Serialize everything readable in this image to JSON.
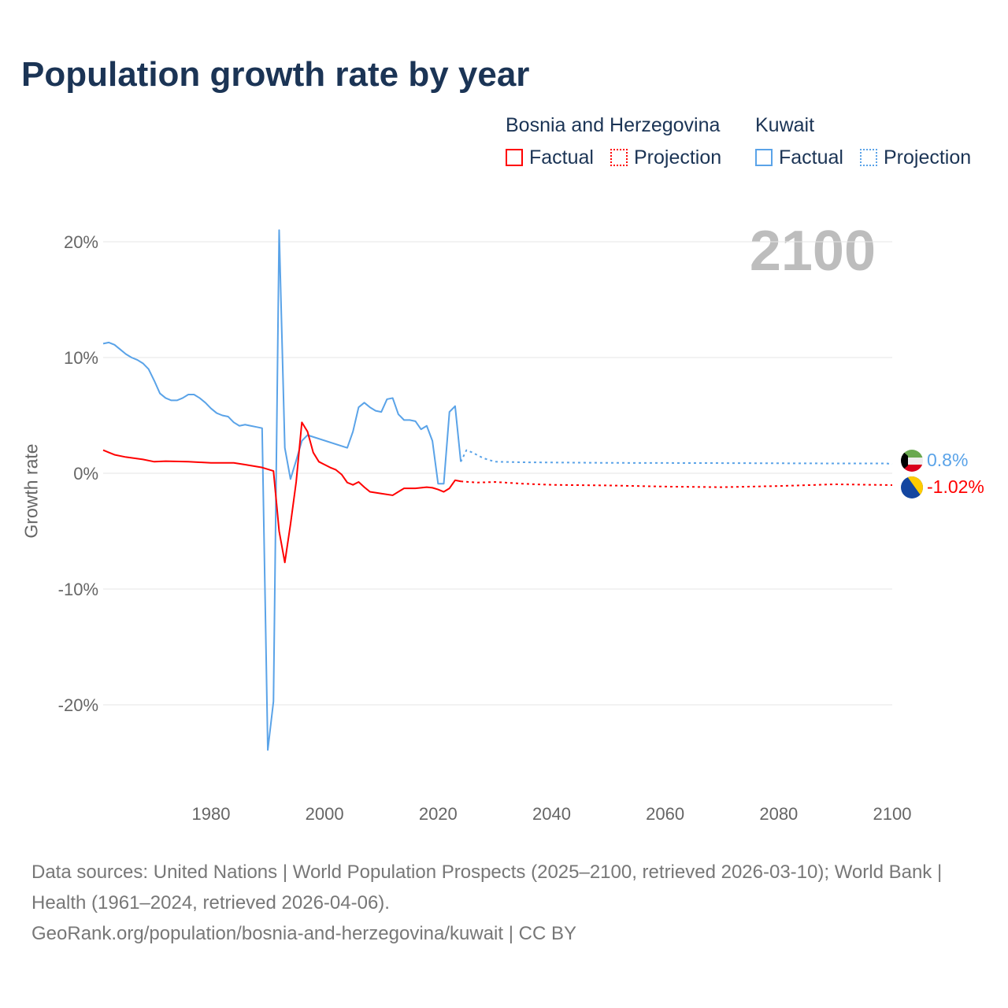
{
  "title": "Population growth rate by year",
  "legend": {
    "groups": [
      {
        "name": "Bosnia and Herzegovina",
        "color": "#ff0000",
        "factual": "Factual",
        "projection": "Projection"
      },
      {
        "name": "Kuwait",
        "color": "#5aa3e8",
        "factual": "Factual",
        "projection": "Projection"
      }
    ]
  },
  "year_badge": "2100",
  "end_labels": {
    "kuwait": "0.8%",
    "bosnia": "-1.02%"
  },
  "footer": {
    "line1": "Data sources: United Nations | World Population Prospects (2025–2100, retrieved 2026-03-10); World Bank | Health (1961–2024, retrieved 2026-04-06).",
    "line2": "GeoRank.org/population/bosnia-and-herzegovina/kuwait | CC BY"
  },
  "chart_data": {
    "type": "line",
    "title": "Population growth rate by year",
    "ylabel": "Growth rate",
    "xlabel": "",
    "xlim": [
      1961,
      2100
    ],
    "ylim": [
      -25,
      22
    ],
    "xticks": [
      1980,
      2000,
      2020,
      2040,
      2060,
      2080,
      2100
    ],
    "xtick_labels": [
      "1980",
      "2000",
      "2020",
      "2040",
      "2060",
      "2080",
      "2100"
    ],
    "yticks": [
      20,
      10,
      0,
      -10,
      -20
    ],
    "ytick_labels": [
      "20%",
      "10%",
      "0%",
      "-10%",
      "-20%"
    ],
    "series": [
      {
        "name": "Kuwait",
        "type": "factual",
        "color": "#5aa3e8",
        "points": [
          [
            1961,
            11.2
          ],
          [
            1962,
            11.3
          ],
          [
            1963,
            11.1
          ],
          [
            1964,
            10.7
          ],
          [
            1965,
            10.3
          ],
          [
            1966,
            10.0
          ],
          [
            1967,
            9.8
          ],
          [
            1968,
            9.5
          ],
          [
            1969,
            9.0
          ],
          [
            1970,
            8.0
          ],
          [
            1971,
            6.9
          ],
          [
            1972,
            6.5
          ],
          [
            1973,
            6.3
          ],
          [
            1974,
            6.3
          ],
          [
            1975,
            6.5
          ],
          [
            1976,
            6.8
          ],
          [
            1977,
            6.8
          ],
          [
            1978,
            6.5
          ],
          [
            1979,
            6.1
          ],
          [
            1980,
            5.6
          ],
          [
            1981,
            5.2
          ],
          [
            1982,
            5.0
          ],
          [
            1983,
            4.9
          ],
          [
            1984,
            4.4
          ],
          [
            1985,
            4.1
          ],
          [
            1986,
            4.2
          ],
          [
            1987,
            4.1
          ],
          [
            1988,
            4.0
          ],
          [
            1989,
            3.9
          ],
          [
            1990,
            -23.9
          ],
          [
            1991,
            -19.7
          ],
          [
            1992,
            21.0
          ],
          [
            1993,
            2.2
          ],
          [
            1994,
            -0.5
          ],
          [
            1995,
            1.1
          ],
          [
            1996,
            2.8
          ],
          [
            1997,
            3.3
          ],
          [
            2004,
            2.2
          ],
          [
            2005,
            3.6
          ],
          [
            2006,
            5.7
          ],
          [
            2007,
            6.1
          ],
          [
            2008,
            5.7
          ],
          [
            2009,
            5.4
          ],
          [
            2010,
            5.3
          ],
          [
            2011,
            6.4
          ],
          [
            2012,
            6.5
          ],
          [
            2013,
            5.1
          ],
          [
            2014,
            4.6
          ],
          [
            2015,
            4.6
          ],
          [
            2016,
            4.5
          ],
          [
            2017,
            3.8
          ],
          [
            2018,
            4.1
          ],
          [
            2019,
            2.8
          ],
          [
            2020,
            -0.9
          ],
          [
            2021,
            -0.9
          ],
          [
            2022,
            5.3
          ],
          [
            2023,
            5.8
          ],
          [
            2024,
            1.0
          ]
        ]
      },
      {
        "name": "Kuwait",
        "type": "projection",
        "color": "#5aa3e8",
        "points": [
          [
            2024,
            1.0
          ],
          [
            2025,
            2.0
          ],
          [
            2026,
            1.8
          ],
          [
            2028,
            1.3
          ],
          [
            2030,
            1.0
          ],
          [
            2035,
            0.95
          ],
          [
            2050,
            0.9
          ],
          [
            2070,
            0.88
          ],
          [
            2090,
            0.85
          ],
          [
            2099,
            0.85
          ],
          [
            2100,
            0.8
          ]
        ]
      },
      {
        "name": "Bosnia and Herzegovina",
        "type": "factual",
        "color": "#ff0000",
        "points": [
          [
            1961,
            2.0
          ],
          [
            1962,
            1.8
          ],
          [
            1963,
            1.6
          ],
          [
            1965,
            1.4
          ],
          [
            1968,
            1.2
          ],
          [
            1970,
            1.0
          ],
          [
            1972,
            1.05
          ],
          [
            1976,
            1.0
          ],
          [
            1980,
            0.9
          ],
          [
            1984,
            0.9
          ],
          [
            1986,
            0.75
          ],
          [
            1989,
            0.5
          ],
          [
            1991,
            0.2
          ],
          [
            1992,
            -5.0
          ],
          [
            1993,
            -7.7
          ],
          [
            1994,
            -4.4
          ],
          [
            1995,
            -0.75
          ],
          [
            1996,
            4.4
          ],
          [
            1997,
            3.6
          ],
          [
            1998,
            1.8
          ],
          [
            1999,
            1.0
          ],
          [
            2000,
            0.75
          ],
          [
            2001,
            0.5
          ],
          [
            2002,
            0.3
          ],
          [
            2003,
            -0.1
          ],
          [
            2004,
            -0.8
          ],
          [
            2005,
            -1.0
          ],
          [
            2006,
            -0.75
          ],
          [
            2007,
            -1.2
          ],
          [
            2008,
            -1.6
          ],
          [
            2010,
            -1.75
          ],
          [
            2012,
            -1.9
          ],
          [
            2014,
            -1.3
          ],
          [
            2016,
            -1.3
          ],
          [
            2018,
            -1.2
          ],
          [
            2019,
            -1.25
          ],
          [
            2020,
            -1.4
          ],
          [
            2021,
            -1.6
          ],
          [
            2022,
            -1.3
          ],
          [
            2023,
            -0.6
          ],
          [
            2024,
            -0.7
          ]
        ]
      },
      {
        "name": "Bosnia and Herzegovina",
        "type": "projection",
        "color": "#ff0000",
        "points": [
          [
            2024,
            -0.7
          ],
          [
            2027,
            -0.8
          ],
          [
            2030,
            -0.75
          ],
          [
            2035,
            -0.9
          ],
          [
            2040,
            -1.0
          ],
          [
            2050,
            -1.05
          ],
          [
            2060,
            -1.15
          ],
          [
            2070,
            -1.2
          ],
          [
            2080,
            -1.1
          ],
          [
            2090,
            -0.95
          ],
          [
            2100,
            -1.02
          ]
        ]
      }
    ]
  }
}
